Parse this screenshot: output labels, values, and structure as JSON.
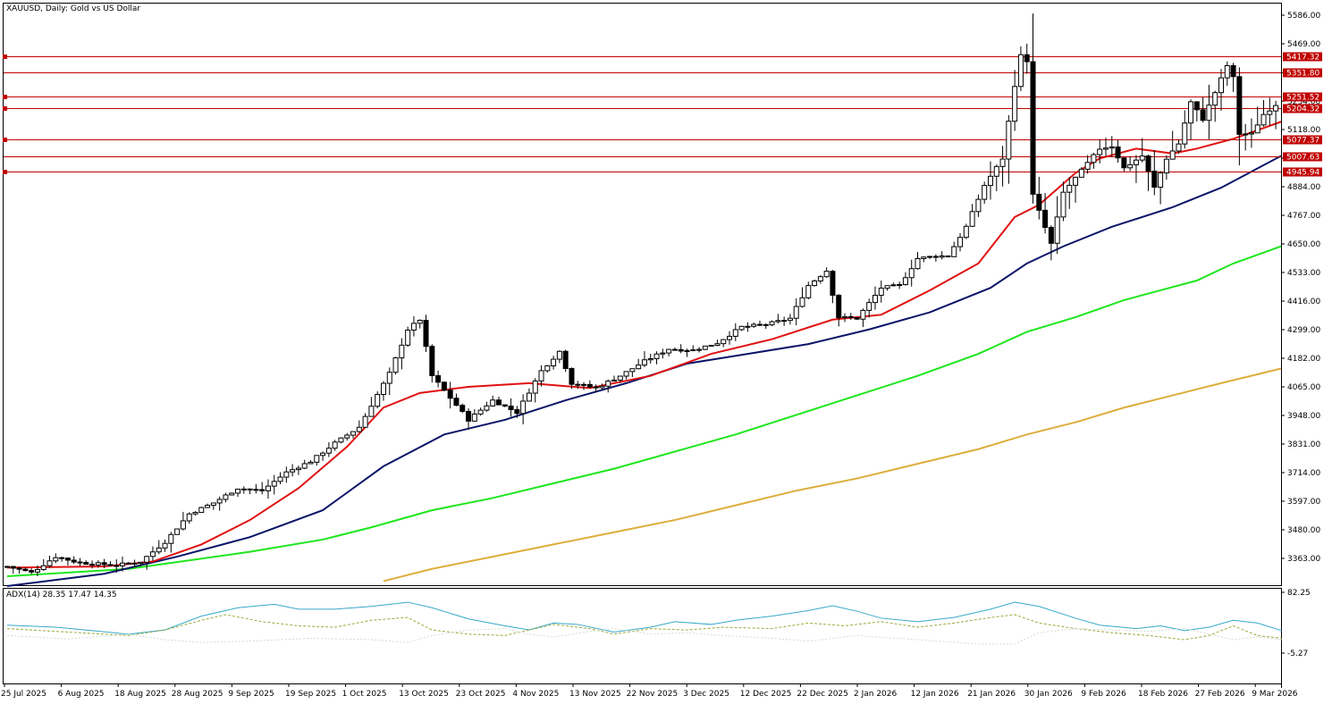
{
  "header": {
    "title": "XAUUSD, Daily:  Gold vs US Dollar",
    "adx_label": "ADX(14) 28.35 17.47 14.35"
  },
  "colors": {
    "ma_fast": "#e01010",
    "ma_mid": "#0a1468",
    "ma_slow": "#1ee61e",
    "ma_long": "#dcae3c",
    "level_line": "#c00000",
    "adx_main": "#38a8c8",
    "di_plus": "#9aaa3c",
    "di_minus": "#d0dcd0"
  },
  "chart_data": [
    {
      "type": "candlestick",
      "symbol": "XAUUSD",
      "timeframe": "Daily",
      "title": "XAUUSD, Daily:  Gold vs US Dollar",
      "ylim": [
        3281,
        5630
      ],
      "y_ticks": [
        "5586.00",
        "5469.00",
        "5351.00",
        "5234.00",
        "5118.00",
        "5001.00",
        "4884.00",
        "4767.00",
        "4650.00",
        "4533.00",
        "4416.00",
        "4299.00",
        "4182.00",
        "4065.00",
        "3948.00",
        "3831.00",
        "3714.00",
        "3597.00",
        "3480.00",
        "3363.00"
      ],
      "x_ticks": [
        "25 Jul 2025",
        "6 Aug 2025",
        "18 Aug 2025",
        "28 Aug 2025",
        "9 Sep 2025",
        "19 Sep 2025",
        "1 Oct 2025",
        "13 Oct 2025",
        "23 Oct 2025",
        "4 Nov 2025",
        "13 Nov 2025",
        "22 Nov 2025",
        "3 Dec 2025",
        "12 Dec 2025",
        "22 Dec 2025",
        "2 Jan 2026",
        "12 Jan 2026",
        "21 Jan 2026",
        "30 Jan 2026",
        "9 Feb 2026",
        "18 Feb 2026",
        "27 Feb 2026",
        "9 Mar 2026"
      ],
      "levels": [
        "5417.32",
        "5351.80",
        "5251.52",
        "5204.32",
        "5077.37",
        "5007.63",
        "4945.94"
      ],
      "anchors": [
        {
          "x": 0,
          "p": 3330
        },
        {
          "x": 4,
          "p": 3305
        },
        {
          "x": 8,
          "p": 3370
        },
        {
          "x": 12,
          "p": 3345
        },
        {
          "x": 18,
          "p": 3335
        },
        {
          "x": 22,
          "p": 3350
        },
        {
          "x": 26,
          "p": 3430
        },
        {
          "x": 30,
          "p": 3545
        },
        {
          "x": 34,
          "p": 3590
        },
        {
          "x": 38,
          "p": 3650
        },
        {
          "x": 42,
          "p": 3640
        },
        {
          "x": 46,
          "p": 3715
        },
        {
          "x": 50,
          "p": 3760
        },
        {
          "x": 54,
          "p": 3835
        },
        {
          "x": 58,
          "p": 3900
        },
        {
          "x": 60,
          "p": 3990
        },
        {
          "x": 63,
          "p": 4120
        },
        {
          "x": 66,
          "p": 4300
        },
        {
          "x": 68,
          "p": 4340
        },
        {
          "x": 70,
          "p": 4110
        },
        {
          "x": 73,
          "p": 4020
        },
        {
          "x": 76,
          "p": 3930
        },
        {
          "x": 80,
          "p": 4010
        },
        {
          "x": 84,
          "p": 3960
        },
        {
          "x": 88,
          "p": 4130
        },
        {
          "x": 91,
          "p": 4210
        },
        {
          "x": 93,
          "p": 4080
        },
        {
          "x": 97,
          "p": 4060
        },
        {
          "x": 101,
          "p": 4110
        },
        {
          "x": 105,
          "p": 4170
        },
        {
          "x": 109,
          "p": 4220
        },
        {
          "x": 113,
          "p": 4215
        },
        {
          "x": 117,
          "p": 4245
        },
        {
          "x": 121,
          "p": 4310
        },
        {
          "x": 125,
          "p": 4320
        },
        {
          "x": 129,
          "p": 4345
        },
        {
          "x": 132,
          "p": 4480
        },
        {
          "x": 135,
          "p": 4540
        },
        {
          "x": 137,
          "p": 4350
        },
        {
          "x": 140,
          "p": 4345
        },
        {
          "x": 144,
          "p": 4470
        },
        {
          "x": 147,
          "p": 4480
        },
        {
          "x": 150,
          "p": 4590
        },
        {
          "x": 153,
          "p": 4600
        },
        {
          "x": 155,
          "p": 4600
        },
        {
          "x": 158,
          "p": 4720
        },
        {
          "x": 161,
          "p": 4890
        },
        {
          "x": 164,
          "p": 5000
        },
        {
          "x": 166,
          "p": 5300
        },
        {
          "x": 167,
          "p": 5420
        },
        {
          "x": 168,
          "p": 5400
        },
        {
          "x": 169,
          "p": 4850
        },
        {
          "x": 172,
          "p": 4650
        },
        {
          "x": 174,
          "p": 4860
        },
        {
          "x": 177,
          "p": 4950
        },
        {
          "x": 180,
          "p": 5040
        },
        {
          "x": 182,
          "p": 5050
        },
        {
          "x": 184,
          "p": 4960
        },
        {
          "x": 187,
          "p": 5010
        },
        {
          "x": 189,
          "p": 4880
        },
        {
          "x": 191,
          "p": 5000
        },
        {
          "x": 193,
          "p": 5060
        },
        {
          "x": 195,
          "p": 5230
        },
        {
          "x": 197,
          "p": 5160
        },
        {
          "x": 199,
          "p": 5270
        },
        {
          "x": 201,
          "p": 5380
        },
        {
          "x": 202,
          "p": 5330
        },
        {
          "x": 203,
          "p": 5100
        },
        {
          "x": 205,
          "p": 5100
        },
        {
          "x": 207,
          "p": 5180
        },
        {
          "x": 209,
          "p": 5220
        }
      ],
      "moving_averages": [
        {
          "points": [
            [
              0,
              3325
            ],
            [
              16,
              3330
            ],
            [
              24,
              3350
            ],
            [
              32,
              3420
            ],
            [
              40,
              3520
            ],
            [
              48,
              3650
            ],
            [
              56,
              3820
            ],
            [
              62,
              3980
            ],
            [
              68,
              4040
            ],
            [
              76,
              4065
            ],
            [
              86,
              4080
            ],
            [
              96,
              4060
            ],
            [
              106,
              4110
            ],
            [
              116,
              4200
            ],
            [
              126,
              4260
            ],
            [
              136,
              4340
            ],
            [
              144,
              4360
            ],
            [
              152,
              4460
            ],
            [
              160,
              4570
            ],
            [
              166,
              4760
            ],
            [
              170,
              4810
            ],
            [
              176,
              4940
            ],
            [
              180,
              5000
            ],
            [
              186,
              5040
            ],
            [
              192,
              5020
            ],
            [
              196,
              5040
            ],
            [
              202,
              5080
            ],
            [
              210,
              5150
            ]
          ]
        },
        {
          "points": [
            [
              0,
              3240
            ],
            [
              16,
              3300
            ],
            [
              28,
              3370
            ],
            [
              40,
              3450
            ],
            [
              52,
              3560
            ],
            [
              62,
              3740
            ],
            [
              72,
              3870
            ],
            [
              82,
              3930
            ],
            [
              92,
              4010
            ],
            [
              102,
              4080
            ],
            [
              112,
              4160
            ],
            [
              122,
              4200
            ],
            [
              132,
              4240
            ],
            [
              142,
              4300
            ],
            [
              152,
              4370
            ],
            [
              162,
              4470
            ],
            [
              168,
              4570
            ],
            [
              174,
              4640
            ],
            [
              182,
              4720
            ],
            [
              192,
              4800
            ],
            [
              200,
              4880
            ],
            [
              210,
              5010
            ]
          ]
        },
        {
          "points": [
            [
              0,
              3290
            ],
            [
              20,
              3320
            ],
            [
              40,
              3390
            ],
            [
              52,
              3440
            ],
            [
              60,
              3490
            ],
            [
              70,
              3560
            ],
            [
              80,
              3610
            ],
            [
              90,
              3670
            ],
            [
              100,
              3730
            ],
            [
              110,
              3800
            ],
            [
              120,
              3870
            ],
            [
              130,
              3950
            ],
            [
              140,
              4030
            ],
            [
              150,
              4110
            ],
            [
              160,
              4200
            ],
            [
              168,
              4290
            ],
            [
              176,
              4350
            ],
            [
              184,
              4420
            ],
            [
              190,
              4460
            ],
            [
              196,
              4500
            ],
            [
              202,
              4570
            ],
            [
              210,
              4640
            ]
          ]
        },
        {
          "points": [
            [
              62,
              3270
            ],
            [
              70,
              3320
            ],
            [
              80,
              3370
            ],
            [
              90,
              3420
            ],
            [
              100,
              3470
            ],
            [
              110,
              3520
            ],
            [
              120,
              3580
            ],
            [
              130,
              3640
            ],
            [
              140,
              3690
            ],
            [
              150,
              3750
            ],
            [
              160,
              3810
            ],
            [
              168,
              3870
            ],
            [
              176,
              3920
            ],
            [
              184,
              3980
            ],
            [
              192,
              4030
            ],
            [
              200,
              4080
            ],
            [
              210,
              4140
            ]
          ]
        }
      ]
    },
    {
      "type": "line",
      "title": "ADX(14) 28.35 17.47 14.35",
      "ylim": [
        -5.27,
        82.25
      ],
      "y_ticks": [
        "82.25",
        "-5.27"
      ],
      "series": [
        {
          "name": "ADX",
          "values": [
            [
              0,
              35
            ],
            [
              8,
              32
            ],
            [
              14,
              27
            ],
            [
              20,
              22
            ],
            [
              26,
              28
            ],
            [
              32,
              48
            ],
            [
              38,
              60
            ],
            [
              44,
              65
            ],
            [
              48,
              58
            ],
            [
              54,
              58
            ],
            [
              60,
              62
            ],
            [
              66,
              68
            ],
            [
              70,
              60
            ],
            [
              76,
              44
            ],
            [
              82,
              34
            ],
            [
              86,
              28
            ],
            [
              90,
              38
            ],
            [
              94,
              36
            ],
            [
              100,
              25
            ],
            [
              106,
              32
            ],
            [
              110,
              40
            ],
            [
              116,
              36
            ],
            [
              120,
              42
            ],
            [
              126,
              48
            ],
            [
              132,
              56
            ],
            [
              136,
              63
            ],
            [
              140,
              55
            ],
            [
              144,
              45
            ],
            [
              150,
              40
            ],
            [
              156,
              46
            ],
            [
              162,
              58
            ],
            [
              166,
              68
            ],
            [
              170,
              62
            ],
            [
              176,
              45
            ],
            [
              180,
              35
            ],
            [
              186,
              30
            ],
            [
              190,
              34
            ],
            [
              194,
              27
            ],
            [
              198,
              32
            ],
            [
              202,
              42
            ],
            [
              206,
              38
            ],
            [
              210,
              27
            ]
          ]
        },
        {
          "name": "+DI",
          "values": [
            [
              0,
              30
            ],
            [
              10,
              25
            ],
            [
              20,
              20
            ],
            [
              26,
              28
            ],
            [
              32,
              42
            ],
            [
              36,
              50
            ],
            [
              42,
              40
            ],
            [
              48,
              34
            ],
            [
              54,
              32
            ],
            [
              60,
              42
            ],
            [
              66,
              46
            ],
            [
              70,
              28
            ],
            [
              76,
              22
            ],
            [
              82,
              20
            ],
            [
              86,
              28
            ],
            [
              90,
              36
            ],
            [
              96,
              30
            ],
            [
              100,
              22
            ],
            [
              106,
              30
            ],
            [
              112,
              28
            ],
            [
              118,
              32
            ],
            [
              126,
              30
            ],
            [
              132,
              38
            ],
            [
              138,
              34
            ],
            [
              144,
              40
            ],
            [
              150,
              32
            ],
            [
              156,
              38
            ],
            [
              162,
              46
            ],
            [
              166,
              50
            ],
            [
              170,
              38
            ],
            [
              176,
              30
            ],
            [
              182,
              24
            ],
            [
              188,
              20
            ],
            [
              194,
              14
            ],
            [
              198,
              20
            ],
            [
              202,
              34
            ],
            [
              206,
              20
            ],
            [
              210,
              16
            ]
          ]
        },
        {
          "name": "-DI",
          "values": [
            [
              0,
              20
            ],
            [
              10,
              15
            ],
            [
              20,
              22
            ],
            [
              26,
              14
            ],
            [
              32,
              10
            ],
            [
              40,
              12
            ],
            [
              50,
              16
            ],
            [
              60,
              14
            ],
            [
              66,
              10
            ],
            [
              70,
              20
            ],
            [
              76,
              28
            ],
            [
              82,
              30
            ],
            [
              86,
              22
            ],
            [
              90,
              18
            ],
            [
              96,
              26
            ],
            [
              100,
              30
            ],
            [
              106,
              22
            ],
            [
              112,
              24
            ],
            [
              118,
              20
            ],
            [
              126,
              16
            ],
            [
              132,
              12
            ],
            [
              140,
              20
            ],
            [
              150,
              14
            ],
            [
              160,
              8
            ],
            [
              166,
              8
            ],
            [
              170,
              24
            ],
            [
              176,
              30
            ],
            [
              182,
              28
            ],
            [
              188,
              26
            ],
            [
              194,
              30
            ],
            [
              198,
              22
            ],
            [
              202,
              14
            ],
            [
              206,
              18
            ],
            [
              210,
              14
            ]
          ]
        }
      ]
    }
  ]
}
